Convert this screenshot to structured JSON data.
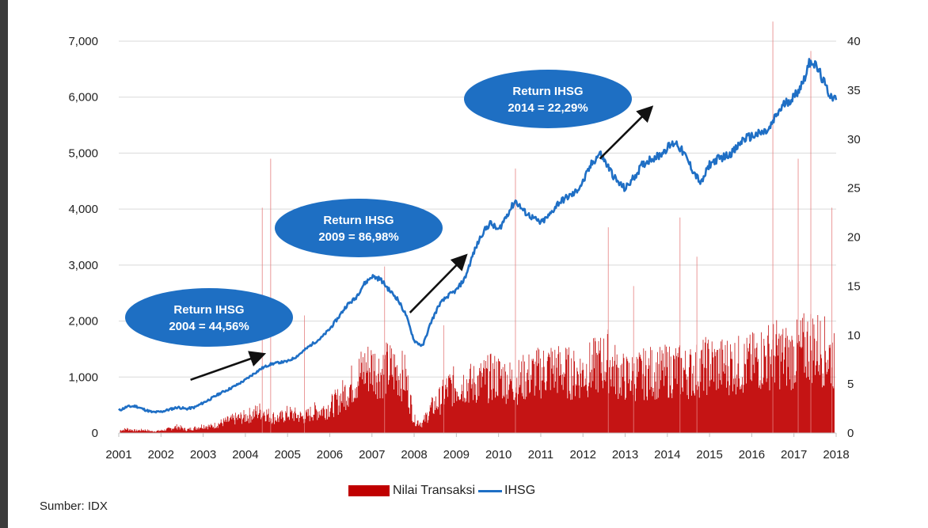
{
  "chart_data": {
    "type": "line",
    "x": [
      2001.0,
      2001.2,
      2001.4,
      2001.6,
      2001.8,
      2002.0,
      2002.2,
      2002.4,
      2002.6,
      2002.8,
      2003.0,
      2003.2,
      2003.4,
      2003.6,
      2003.8,
      2004.0,
      2004.2,
      2004.4,
      2004.6,
      2004.8,
      2005.0,
      2005.2,
      2005.4,
      2005.6,
      2005.8,
      2006.0,
      2006.2,
      2006.4,
      2006.6,
      2006.8,
      2007.0,
      2007.2,
      2007.4,
      2007.6,
      2007.8,
      2008.0,
      2008.2,
      2008.4,
      2008.6,
      2008.8,
      2009.0,
      2009.2,
      2009.4,
      2009.6,
      2009.8,
      2010.0,
      2010.2,
      2010.4,
      2010.6,
      2010.8,
      2011.0,
      2011.2,
      2011.4,
      2011.6,
      2011.8,
      2012.0,
      2012.2,
      2012.4,
      2012.6,
      2012.8,
      2013.0,
      2013.2,
      2013.4,
      2013.6,
      2013.8,
      2014.0,
      2014.2,
      2014.4,
      2014.6,
      2014.8,
      2015.0,
      2015.2,
      2015.4,
      2015.6,
      2015.8,
      2016.0,
      2016.2,
      2016.4,
      2016.6,
      2016.8,
      2017.0,
      2017.2,
      2017.4,
      2017.6,
      2017.8,
      2018.0
    ],
    "series": [
      {
        "name": "IHSG",
        "color": "#1f6fc5",
        "axis": "left",
        "values": [
          400,
          470,
          480,
          420,
          370,
          380,
          420,
          460,
          430,
          460,
          540,
          620,
          710,
          780,
          860,
          950,
          1060,
          1160,
          1230,
          1260,
          1280,
          1360,
          1480,
          1600,
          1700,
          1860,
          2060,
          2280,
          2400,
          2650,
          2800,
          2750,
          2560,
          2400,
          2120,
          1650,
          1550,
          1980,
          2300,
          2450,
          2550,
          2760,
          3200,
          3550,
          3750,
          3620,
          3900,
          4150,
          3960,
          3850,
          3750,
          3880,
          4100,
          4200,
          4280,
          4480,
          4800,
          5000,
          4750,
          4500,
          4360,
          4560,
          4780,
          4900,
          4950,
          5100,
          5200,
          4980,
          4700,
          4450,
          4800,
          4900,
          4950,
          5050,
          5250,
          5300,
          5350,
          5400,
          5700,
          5900,
          6000,
          6250,
          6680,
          6450,
          6100,
          5950
        ]
      },
      {
        "name": "Nilai Transaksi",
        "color": "#c00000",
        "axis": "right",
        "envelope": [
          0.3,
          0.5,
          0.3,
          0.4,
          0.2,
          0.3,
          0.5,
          0.8,
          0.4,
          0.6,
          0.9,
          0.8,
          1.2,
          1.5,
          1.8,
          2.0,
          2.4,
          2.8,
          2.0,
          1.8,
          2.4,
          2.2,
          1.9,
          2.6,
          2.8,
          3.2,
          4.0,
          5.2,
          6.5,
          7.8,
          8.2,
          7.5,
          8.0,
          7.5,
          6.8,
          1.6,
          1.2,
          3.0,
          4.0,
          5.5,
          5.8,
          6.2,
          6.0,
          6.5,
          6.8,
          7.0,
          6.5,
          6.2,
          6.8,
          7.2,
          7.5,
          8.0,
          7.8,
          7.5,
          7.2,
          7.5,
          8.0,
          8.5,
          9.0,
          7.5,
          6.8,
          7.0,
          7.2,
          7.5,
          7.4,
          7.6,
          7.8,
          7.5,
          7.6,
          8.0,
          8.5,
          8.2,
          8.4,
          8.5,
          8.3,
          8.6,
          9.2,
          9.6,
          9.8,
          9.4,
          9.5,
          10.2,
          11.0,
          10.5,
          9.8,
          9.0
        ],
        "spikes": [
          {
            "x": 2004.4,
            "value": 23
          },
          {
            "x": 2004.6,
            "value": 28
          },
          {
            "x": 2005.4,
            "value": 12
          },
          {
            "x": 2007.3,
            "value": 17
          },
          {
            "x": 2008.7,
            "value": 11
          },
          {
            "x": 2010.4,
            "value": 27
          },
          {
            "x": 2012.6,
            "value": 21
          },
          {
            "x": 2013.2,
            "value": 15
          },
          {
            "x": 2014.3,
            "value": 22
          },
          {
            "x": 2014.7,
            "value": 18
          },
          {
            "x": 2016.5,
            "value": 42
          },
          {
            "x": 2017.1,
            "value": 28
          },
          {
            "x": 2017.4,
            "value": 39
          },
          {
            "x": 2017.9,
            "value": 23
          }
        ]
      }
    ],
    "x_ticks": [
      "2001",
      "2002",
      "2003",
      "2004",
      "2005",
      "2006",
      "2007",
      "2008",
      "2009",
      "2010",
      "2011",
      "2012",
      "2013",
      "2014",
      "2015",
      "2016",
      "2017",
      "2018"
    ],
    "y_ticks_left": [
      "0",
      "1,000",
      "2,000",
      "3,000",
      "4,000",
      "5,000",
      "6,000",
      "7,000"
    ],
    "y_ticks_right": [
      "0",
      "5",
      "10",
      "15",
      "20",
      "25",
      "30",
      "35",
      "40"
    ],
    "xlim": [
      2001,
      2018
    ],
    "ylim_left": [
      0,
      7000
    ],
    "ylim_right": [
      0,
      40
    ],
    "grid": "horizontal",
    "legend_position": "bottom-center",
    "legend": [
      "Nilai Transaksi",
      "IHSG"
    ],
    "annotations": [
      {
        "line1": "Return IHSG",
        "line2": "2004 = 44,56%",
        "arrow_from": [
          2002.7,
          950
        ],
        "arrow_to": [
          2004.4,
          1400
        ]
      },
      {
        "line1": "Return IHSG",
        "line2": "2009 = 86,98%",
        "arrow_from": [
          2007.9,
          2150
        ],
        "arrow_to": [
          2009.2,
          3150
        ]
      },
      {
        "line1": "Return IHSG",
        "line2": "2014 = 22,29%",
        "arrow_from": [
          2012.4,
          4900
        ],
        "arrow_to": [
          2013.6,
          5800
        ]
      }
    ],
    "callout_color": "#1e6fc3",
    "source": "Sumber: IDX"
  }
}
